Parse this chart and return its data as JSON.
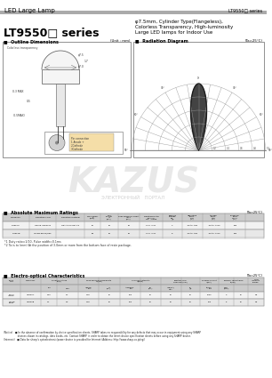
{
  "header_left": "LED Large Lamp",
  "header_right": "LT9550□ series",
  "title_series": "LT9550□ series",
  "title_desc_line1": "φ7.5mm, Cylinder Type(Flangeless),",
  "title_desc_line2": "Colorless Transparency, High-luminosity",
  "title_desc_line3": "Large LED lamps for Indoor Use",
  "section_outline": "■  Outline Dimensions",
  "section_outline_unit": "(Unit : mm)",
  "section_radiation": "■  Radiation Diagram",
  "section_radiation_unit": "(Ta=25°C)",
  "section_ratings": "■  Absolute Maximum Ratings",
  "section_ratings_unit": "(Ta=25°C)",
  "section_electro": "■  Electro-optical Characteristics",
  "section_electro_unit": "(Ta=25°C)",
  "bg_color": "#ffffff",
  "gray_bar_color": "#aaaaaa",
  "table_header_bg": "#cccccc",
  "table_row1_bg": "#f2f2f2",
  "table_row2_bg": "#e8e8e8",
  "table_border": "#999999",
  "kazus_color": "#cccccc",
  "portal_color": "#aaaaaa",
  "footer_text1": "(Notice)   ■ In the absence of confirmation by device specification sheets, SHARP takes no responsibility for any defects that may occur in equipment using any SHARP",
  "footer_text2": "                  devices shown in catalogs, data books, etc. Contact SHARP in order to obtain the latest device specification sheets before using any SHARP device.",
  "footer_text3": "(Internet)   ■ Data for sharp’s optoelectronic/power device is provided for Internet (Address: http://www.sharp.co.jp/eg/)"
}
